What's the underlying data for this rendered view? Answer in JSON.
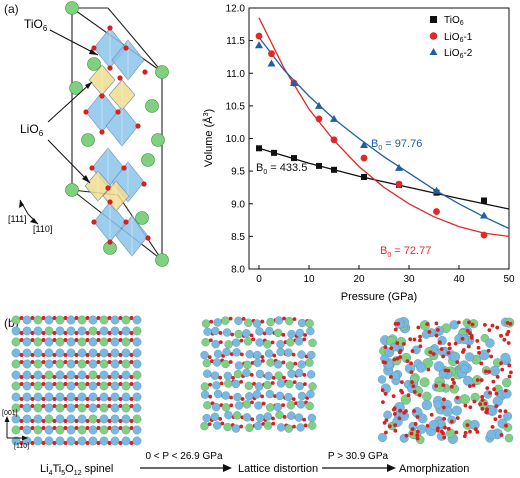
{
  "panel_a": {
    "label": "(a)",
    "structure": {
      "tio6_label_main": "TiO",
      "tio6_label_sub": "6",
      "lio6_label_main": "LiO",
      "lio6_label_sub": "6",
      "dir_111": "[111]",
      "dir_110": "[110]"
    }
  },
  "panel_b": {
    "label": "(b)",
    "axis_001": "[001]",
    "axis_110": "[110]",
    "formula_parts": [
      "Li",
      "4",
      "Ti",
      "5",
      "O",
      "12",
      " spinel"
    ],
    "arrow1_label": "0 < P < 26.9 GPa",
    "stage2": "Lattice distortion",
    "arrow2_label": "P > 30.9 GPa",
    "stage3": "Amorphization"
  },
  "colors": {
    "tio6": "#111111",
    "lio6_1": "#e02a2a",
    "lio6_2": "#1f5fa6",
    "li_atom": "#7fd07f",
    "ti_atom": "#79b8df",
    "o_atom": "#d82020",
    "tio6_octa": "#8cc4ea",
    "lio6_octa": "#f1dc8e"
  },
  "chart_data": {
    "type": "scatter",
    "xlabel": "Pressure (GPa)",
    "ylabel_main": "Volume (Å",
    "ylabel_sup": "3",
    "ylabel_end": ")",
    "xlim": [
      -2,
      50
    ],
    "ylim": [
      8.0,
      12.0
    ],
    "xticks": [
      "0",
      "10",
      "20",
      "30",
      "40",
      "50"
    ],
    "yticks": [
      "8.0",
      "8.5",
      "9.0",
      "9.5",
      "10.0",
      "10.5",
      "11.0",
      "11.5",
      "12.0"
    ],
    "legend_position": "top-right",
    "series": [
      {
        "name_main": "TiO",
        "name_sub": "6",
        "marker": "square",
        "color": "#111111",
        "x": [
          0,
          3,
          7,
          12,
          15,
          21,
          28,
          35.5,
          45
        ],
        "y": [
          9.85,
          9.78,
          9.7,
          9.58,
          9.52,
          9.41,
          9.29,
          9.17,
          9.05
        ],
        "fit": [
          [
            0,
            9.85
          ],
          [
            10,
            9.62
          ],
          [
            20,
            9.42
          ],
          [
            30,
            9.25
          ],
          [
            40,
            9.08
          ],
          [
            50,
            8.92
          ]
        ],
        "b0_label": "B",
        "b0_sub": "0",
        "b0_value": " = 433.5"
      },
      {
        "name_main": "LiO",
        "name_sub": "6",
        "name_suffix": "-1",
        "marker": "circle",
        "color": "#e02a2a",
        "x": [
          0,
          2.5,
          7,
          12,
          15,
          21,
          28,
          35.5,
          45
        ],
        "y": [
          11.57,
          11.3,
          10.85,
          10.3,
          9.98,
          9.7,
          9.3,
          8.88,
          8.52
        ],
        "fit": [
          [
            0,
            11.85
          ],
          [
            5,
            11.08
          ],
          [
            10,
            10.45
          ],
          [
            15,
            9.97
          ],
          [
            20,
            9.57
          ],
          [
            25,
            9.25
          ],
          [
            30,
            9.0
          ],
          [
            35,
            8.8
          ],
          [
            40,
            8.65
          ],
          [
            45,
            8.55
          ],
          [
            50,
            8.5
          ]
        ],
        "b0_label": "B",
        "b0_sub": "0",
        "b0_value": " = 72.77"
      },
      {
        "name_main": "LiO",
        "name_sub": "6",
        "name_suffix": "-2",
        "marker": "triangle",
        "color": "#1f5fa6",
        "x": [
          0,
          2.5,
          7,
          12,
          15,
          21,
          28,
          35.5,
          45
        ],
        "y": [
          11.43,
          11.15,
          10.85,
          10.5,
          10.3,
          9.9,
          9.55,
          9.2,
          8.82
        ],
        "fit": [
          [
            0,
            11.55
          ],
          [
            5,
            11.05
          ],
          [
            10,
            10.65
          ],
          [
            15,
            10.3
          ],
          [
            20,
            10.0
          ],
          [
            25,
            9.72
          ],
          [
            30,
            9.47
          ],
          [
            35,
            9.22
          ],
          [
            40,
            9.0
          ],
          [
            45,
            8.8
          ],
          [
            50,
            8.62
          ]
        ],
        "b0_label": "B",
        "b0_sub": "0",
        "b0_value": " = 97.76"
      }
    ]
  }
}
